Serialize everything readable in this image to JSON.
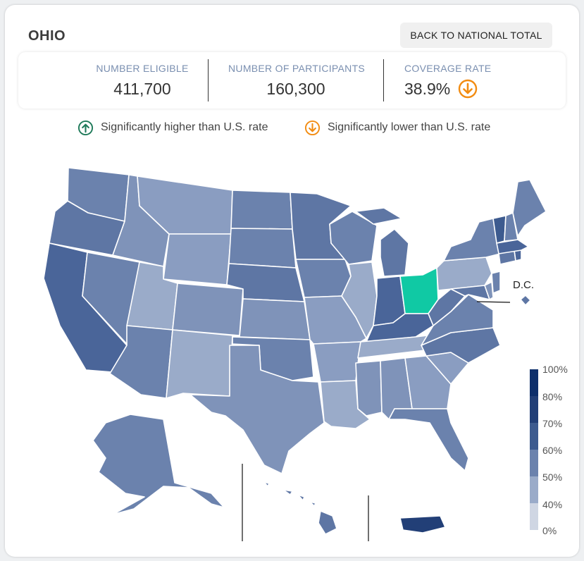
{
  "header": {
    "state_name": "OHIO",
    "back_button": "BACK TO NATIONAL TOTAL"
  },
  "stats": {
    "eligible_label": "NUMBER ELIGIBLE",
    "eligible_value": "411,700",
    "participants_label": "NUMBER OF PARTICIPANTS",
    "participants_value": "160,300",
    "coverage_label": "COVERAGE RATE",
    "coverage_value": "38.9%",
    "coverage_indicator": "significantly-lower"
  },
  "legend": {
    "higher_label": "Significantly higher than U.S. rate",
    "lower_label": "Significantly lower than U.S. rate",
    "higher_color": "#1f7a5a",
    "lower_color": "#f28c12"
  },
  "map": {
    "selected_state": "Ohio",
    "selected_color": "#10c9a4",
    "dc_label": "D.C."
  },
  "color_scale": {
    "ticks": [
      "100%",
      "80%",
      "70%",
      "60%",
      "50%",
      "40%",
      "0%"
    ],
    "bins": [
      {
        "range": "80-100%",
        "color": "#0e2f6b"
      },
      {
        "range": "70-80%",
        "color": "#223f77"
      },
      {
        "range": "60-70%",
        "color": "#3d5b8f"
      },
      {
        "range": "50-60%",
        "color": "#6b82ad"
      },
      {
        "range": "40-50%",
        "color": "#9aabc9"
      },
      {
        "range": "0-40%",
        "color": "#cfd6e3"
      }
    ]
  }
}
